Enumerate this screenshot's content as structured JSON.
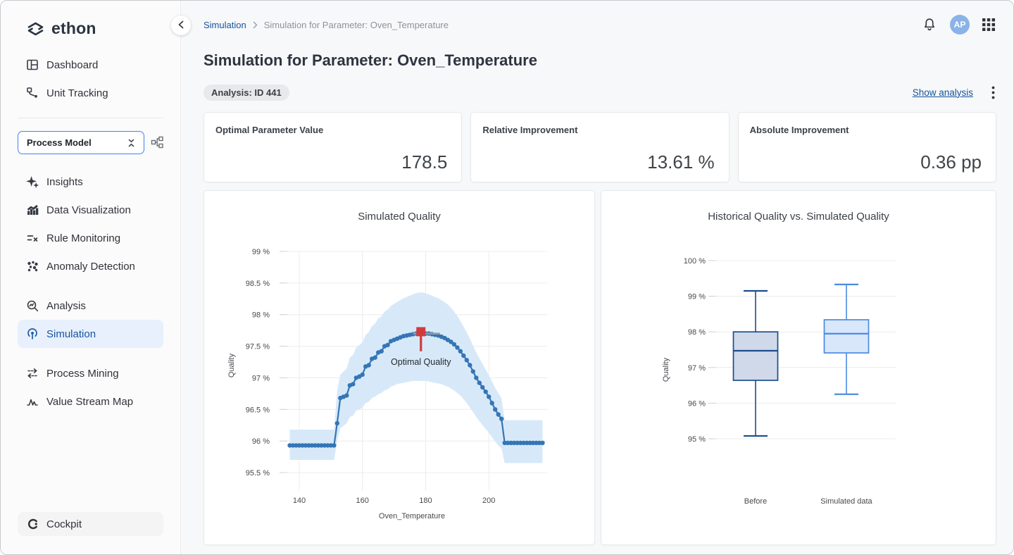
{
  "brand": "ethon",
  "topbar": {
    "breadcrumb_root": "Simulation",
    "breadcrumb_current": "Simulation for Parameter: Oven_Temperature",
    "avatar_initials": "AP"
  },
  "sidebar": {
    "nav_main": [
      {
        "label": "Dashboard"
      },
      {
        "label": "Unit Tracking"
      }
    ],
    "model_select": {
      "value": "Process Model"
    },
    "nav_model": [
      {
        "label": "Insights"
      },
      {
        "label": "Data Visualization"
      },
      {
        "label": "Rule Monitoring"
      },
      {
        "label": "Anomaly Detection"
      }
    ],
    "nav_analysis": [
      {
        "label": "Analysis"
      },
      {
        "label": "Simulation",
        "active": true
      }
    ],
    "nav_process": [
      {
        "label": "Process Mining"
      },
      {
        "label": "Value Stream Map"
      }
    ],
    "cockpit_label": "Cockpit"
  },
  "page": {
    "title": "Simulation for Parameter: Oven_Temperature",
    "analysis_badge": "Analysis: ID 441",
    "show_analysis_label": "Show analysis",
    "stats": [
      {
        "label": "Optimal Parameter Value",
        "value": "178.5"
      },
      {
        "label": "Relative Improvement",
        "value": "13.61 %"
      },
      {
        "label": "Absolute Improvement",
        "value": "0.36 pp"
      }
    ]
  },
  "colors": {
    "accent_blue": "#15539e",
    "active_item_bg": "#e7f0fc",
    "line_blue": "#3575b5",
    "band_blue": "#d7e9f9",
    "marker_red": "#d23b3d",
    "grid": "#ececec"
  },
  "chart_data": [
    {
      "type": "line",
      "title": "Simulated Quality",
      "xlabel": "Oven_Temperature",
      "ylabel": "Quality",
      "x_start": 137,
      "x_step": 1,
      "xticks": [
        140,
        160,
        180,
        200
      ],
      "yticks": [
        99,
        98.5,
        98,
        97.5,
        97,
        96.5,
        96,
        95.5
      ],
      "xlim": [
        133.5,
        219
      ],
      "ylim": [
        95.1,
        99.1
      ],
      "line_color": "#3575b5",
      "band_color": "#d7e9f9",
      "grid_color": "#ececec",
      "y": [
        95.93,
        95.93,
        95.93,
        95.93,
        95.93,
        95.93,
        95.93,
        95.93,
        95.93,
        95.93,
        95.93,
        95.93,
        95.93,
        95.93,
        95.93,
        96.28,
        96.68,
        96.7,
        96.72,
        96.88,
        96.9,
        97.0,
        97.02,
        97.05,
        97.18,
        97.2,
        97.3,
        97.32,
        97.4,
        97.42,
        97.5,
        97.52,
        97.58,
        97.6,
        97.62,
        97.64,
        97.66,
        97.67,
        97.68,
        97.69,
        97.7,
        97.71,
        97.71,
        97.7,
        97.7,
        97.69,
        97.68,
        97.67,
        97.65,
        97.63,
        97.6,
        97.57,
        97.53,
        97.48,
        97.42,
        97.35,
        97.28,
        97.2,
        97.1,
        97.0,
        96.92,
        96.85,
        96.78,
        96.7,
        96.6,
        96.5,
        96.42,
        96.35,
        95.97,
        95.97,
        95.97,
        95.97,
        95.97,
        95.97,
        95.97,
        95.97,
        95.97,
        95.97,
        95.97,
        95.97,
        95.97
      ],
      "band_low": [
        95.7,
        95.7,
        95.7,
        95.7,
        95.7,
        95.7,
        95.7,
        95.7,
        95.7,
        95.7,
        95.7,
        95.7,
        95.7,
        95.7,
        95.7,
        96.0,
        96.2,
        96.24,
        96.28,
        96.38,
        96.4,
        96.48,
        96.5,
        96.53,
        96.6,
        96.62,
        96.68,
        96.7,
        96.74,
        96.76,
        96.8,
        96.82,
        96.86,
        96.88,
        96.9,
        96.91,
        96.92,
        96.93,
        96.94,
        96.95,
        96.95,
        96.95,
        96.95,
        96.95,
        96.94,
        96.93,
        96.92,
        96.91,
        96.9,
        96.88,
        96.86,
        96.83,
        96.8,
        96.76,
        96.72,
        96.66,
        96.6,
        96.53,
        96.46,
        96.38,
        96.31,
        96.25,
        96.19,
        96.13,
        96.06,
        95.99,
        95.93,
        95.88,
        95.65,
        95.65,
        95.65,
        95.65,
        95.65,
        95.65,
        95.65,
        95.65,
        95.65,
        95.65,
        95.65,
        95.65,
        95.65
      ],
      "band_high": [
        96.18,
        96.18,
        96.18,
        96.18,
        96.18,
        96.18,
        96.18,
        96.18,
        96.18,
        96.18,
        96.18,
        96.18,
        96.18,
        96.18,
        96.18,
        96.8,
        97.05,
        97.1,
        97.15,
        97.32,
        97.36,
        97.48,
        97.52,
        97.56,
        97.68,
        97.72,
        97.82,
        97.86,
        97.94,
        97.97,
        98.05,
        98.08,
        98.14,
        98.17,
        98.2,
        98.23,
        98.26,
        98.28,
        98.3,
        98.32,
        98.34,
        98.35,
        98.35,
        98.34,
        98.32,
        98.3,
        98.28,
        98.26,
        98.23,
        98.2,
        98.16,
        98.11,
        98.05,
        97.98,
        97.9,
        97.81,
        97.72,
        97.62,
        97.51,
        97.4,
        97.31,
        97.22,
        97.13,
        97.04,
        96.94,
        96.84,
        96.76,
        96.68,
        96.33,
        96.33,
        96.33,
        96.33,
        96.33,
        96.33,
        96.33,
        96.33,
        96.33,
        96.33,
        96.33,
        96.33,
        96.33
      ],
      "annotation": {
        "label": "Optimal Quality",
        "x": 178.5,
        "marker_top": 97.73,
        "marker_bottom": 97.42,
        "label_y": 97.25,
        "ref_y": 97.7,
        "ref_x1": 176,
        "ref_x2": 184.5,
        "color": "#d23b3d",
        "ref_color": "#9b9b9b"
      }
    },
    {
      "type": "boxplot",
      "title": "Historical Quality vs. Simulated Quality",
      "ylabel": "Quality",
      "yticks": [
        100,
        99,
        98,
        97,
        96,
        95
      ],
      "ylim": [
        94.2,
        100.6
      ],
      "grid_color": "#ececec",
      "categories": [
        "Before",
        "Simulated data"
      ],
      "boxes": [
        {
          "label": "Before",
          "whisker_low": 95.08,
          "q1": 96.64,
          "median": 97.47,
          "q3": 98.0,
          "whisker_high": 99.15,
          "stroke": "#1c4c8c",
          "fill": "#cfd9ea"
        },
        {
          "label": "Simulated data",
          "whisker_low": 96.25,
          "q1": 97.41,
          "median": 97.95,
          "q3": 98.34,
          "whisker_high": 99.33,
          "stroke": "#4b8be0",
          "fill": "#d9e7fa"
        }
      ]
    }
  ]
}
